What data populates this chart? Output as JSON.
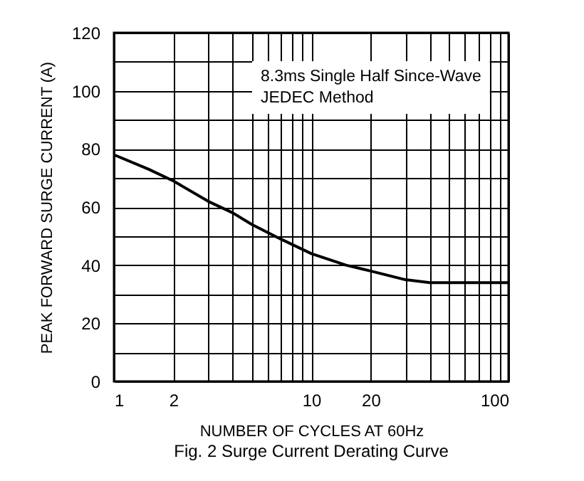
{
  "chart_data": {
    "type": "line",
    "title": "Fig. 2  Surge Current Derating Curve",
    "xlabel": "NUMBER OF CYCLES AT 60Hz",
    "ylabel": "PEAK FORWARD SURGE CURRENT (A)",
    "annotations": [
      "8.3ms Single Half Since-Wave",
      "JEDEC Method"
    ],
    "x": [
      1,
      1.5,
      2,
      3,
      4,
      5,
      7,
      10,
      15,
      20,
      30,
      40,
      50,
      70,
      100
    ],
    "series": [
      {
        "color": "#000000",
        "values": [
          78,
          73,
          69,
          62,
          58,
          54,
          49,
          44,
          40,
          38,
          35,
          34,
          34,
          34,
          34
        ]
      }
    ],
    "log": "x",
    "grid": true,
    "marker": "none",
    "line_style": "solid",
    "xlim": [
      1,
      100
    ],
    "xticks": [
      1,
      2,
      {
        "value": 3,
        "label": null
      },
      {
        "value": 4,
        "label": null
      },
      {
        "value": 5,
        "label": null
      },
      {
        "value": 6,
        "label": null
      },
      {
        "value": 7,
        "label": null
      },
      {
        "value": 8,
        "label": null
      },
      {
        "value": 9,
        "label": null
      },
      10,
      20,
      {
        "value": 30,
        "label": null
      },
      {
        "value": 40,
        "label": null
      },
      {
        "value": 50,
        "label": null
      },
      {
        "value": 60,
        "label": null
      },
      {
        "value": 70,
        "label": null
      },
      {
        "value": 80,
        "label": null
      },
      {
        "value": 90,
        "label": null
      },
      100
    ],
    "ylim": [
      0,
      120
    ],
    "yticks": [
      0,
      {
        "value": 10,
        "label": null
      },
      20,
      {
        "value": 30,
        "label": null
      },
      40,
      {
        "value": 50,
        "label": null
      },
      60,
      {
        "value": 70,
        "label": null
      },
      80,
      {
        "value": 90,
        "label": null
      },
      100,
      {
        "value": 110,
        "label": null
      },
      120
    ]
  }
}
